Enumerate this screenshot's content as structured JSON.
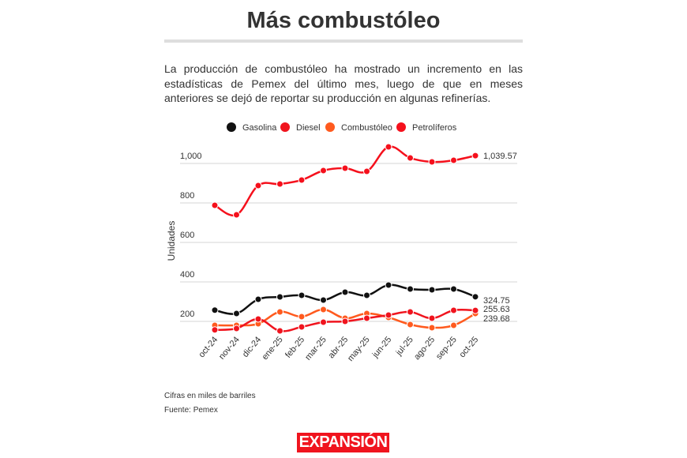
{
  "title": "Más combustóleo",
  "intro": "La producción de combustóleo ha mostrado un incremento en las estadísticas de Pemex del último mes, luego de que en meses anteriores se dejó de reportar su producción en algunas refinerías.",
  "notes": {
    "units": "Cifras en miles de barriles",
    "source": "Fuente: Pemex"
  },
  "logo": "EXPANSIÓN",
  "chart_data": {
    "type": "line",
    "ylabel": "Unidades",
    "xlabel": "",
    "legend_position": "top",
    "grid": true,
    "ylim": [
      120,
      1100
    ],
    "yticks": [
      200,
      400,
      600,
      800,
      1000
    ],
    "ytick_labels": [
      "200",
      "400",
      "600",
      "800",
      "1,000"
    ],
    "categories": [
      "oct-24",
      "nov-24",
      "dic-24",
      "ene-25",
      "feb-25",
      "mar-25",
      "abr-25",
      "may-25",
      "jun-25",
      "jul-25",
      "ago-25",
      "sep-25",
      "oct-25"
    ],
    "series": [
      {
        "name": "Gasolina",
        "color": "#111111",
        "end_label": "324.75",
        "values": [
          257,
          240,
          312,
          324,
          332,
          308,
          348,
          332,
          384,
          364,
          360,
          364,
          324.75
        ]
      },
      {
        "name": "Diesel",
        "color": "#f0141e",
        "end_label": "255.63",
        "values": [
          157,
          164,
          212,
          152,
          172,
          196,
          200,
          216,
          232,
          248,
          216,
          256,
          255.63
        ]
      },
      {
        "name": "Combustóleo",
        "color": "#ff5a1e",
        "end_label": "239.68",
        "values": [
          180,
          180,
          188,
          248,
          224,
          260,
          216,
          240,
          220,
          184,
          168,
          180,
          239.68
        ]
      },
      {
        "name": "Petrolíferos",
        "color": "#f5101c",
        "end_label": "1,039.57",
        "values": [
          788,
          740,
          888,
          896,
          916,
          964,
          976,
          960,
          1084,
          1028,
          1008,
          1016,
          1039.57
        ]
      }
    ]
  }
}
